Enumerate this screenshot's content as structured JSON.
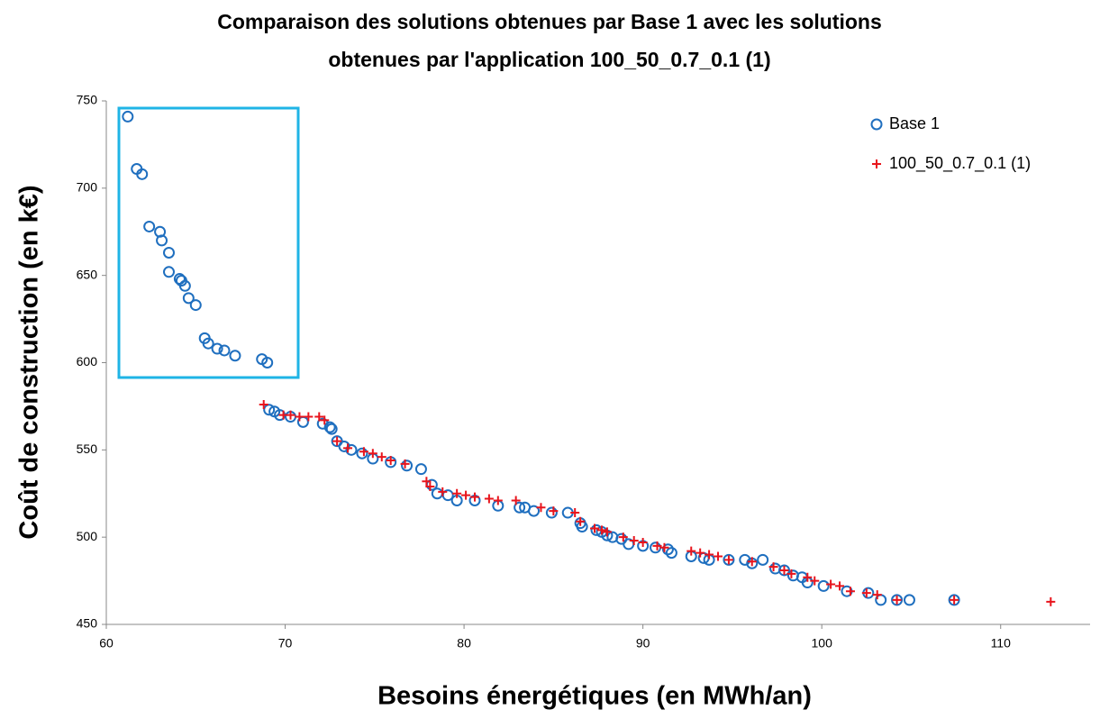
{
  "chart_data": {
    "type": "scatter",
    "title": [
      "Comparaison des solutions obtenues par Base 1 avec les solutions",
      "obtenues par l'application 100_50_0.7_0.1 (1)"
    ],
    "xlabel": "Besoins énergétiques (en MWh/an)",
    "ylabel": "Coût de construction (en k€)",
    "xlim": [
      60,
      115
    ],
    "xticks": [
      60,
      70,
      80,
      90,
      100,
      110
    ],
    "ylim": [
      450,
      750
    ],
    "yticks": [
      450,
      500,
      550,
      600,
      650,
      700,
      750
    ],
    "grid": false,
    "legend": "upper right",
    "series": [
      {
        "name": "Base 1",
        "color": "#1f6fbf",
        "marker": "circle",
        "x": [
          61.2,
          61.7,
          62.0,
          62.4,
          63.0,
          63.1,
          63.5,
          63.5,
          64.1,
          64.2,
          64.4,
          64.6,
          65.0,
          65.5,
          65.7,
          66.2,
          66.6,
          67.2,
          68.7,
          69.0,
          69.1,
          69.4,
          69.7,
          70.3,
          71.0,
          72.1,
          72.5,
          72.6,
          72.9,
          73.3,
          73.7,
          74.3,
          74.9,
          75.9,
          76.8,
          77.6,
          78.2,
          78.5,
          79.1,
          79.6,
          80.6,
          81.9,
          83.1,
          83.4,
          83.9,
          84.9,
          85.8,
          86.5,
          86.6,
          87.4,
          87.7,
          88.0,
          88.3,
          88.8,
          89.2,
          90.0,
          90.7,
          91.4,
          91.6,
          92.7,
          93.4,
          93.7,
          94.8,
          95.7,
          96.1,
          96.7,
          97.4,
          97.9,
          98.4,
          98.9,
          99.2,
          100.1,
          101.4,
          102.6,
          103.3,
          104.2,
          104.9,
          107.4
        ],
        "values": [
          741,
          711,
          708,
          678,
          675,
          670,
          663,
          652,
          648,
          647,
          644,
          637,
          633,
          614,
          611,
          608,
          607,
          604,
          602,
          600,
          573,
          572,
          570,
          569,
          566,
          565,
          563,
          562,
          555,
          552,
          550,
          548,
          545,
          543,
          541,
          539,
          530,
          525,
          524,
          521,
          521,
          518,
          517,
          517,
          515,
          514,
          514,
          508,
          506,
          504,
          503,
          501,
          500,
          499,
          496,
          495,
          494,
          493,
          491,
          489,
          488,
          487,
          487,
          487,
          485,
          487,
          482,
          481,
          478,
          477,
          474,
          472,
          469,
          468,
          464,
          464,
          464,
          464
        ]
      },
      {
        "name": "100_50_0.7_0.1 (1)",
        "color": "#e8141c",
        "marker": "plus",
        "x": [
          68.8,
          69.9,
          70.3,
          70.8,
          71.3,
          71.9,
          72.2,
          72.9,
          73.5,
          74.4,
          74.9,
          75.4,
          75.9,
          76.7,
          77.9,
          78.1,
          78.8,
          79.6,
          80.1,
          80.6,
          81.4,
          81.9,
          82.9,
          84.3,
          85.0,
          86.2,
          86.5,
          87.3,
          87.7,
          88.0,
          88.9,
          89.5,
          90.0,
          90.8,
          91.2,
          92.7,
          93.2,
          93.7,
          94.2,
          94.8,
          96.1,
          97.3,
          97.9,
          98.3,
          99.2,
          99.6,
          100.5,
          101.0,
          101.6,
          102.5,
          103.1,
          104.2,
          107.4,
          112.8
        ],
        "values": [
          576,
          570,
          570,
          569,
          569,
          569,
          567,
          555,
          551,
          549,
          548,
          546,
          544,
          542,
          532,
          529,
          526,
          525,
          524,
          523,
          522,
          521,
          521,
          517,
          515,
          514,
          509,
          505,
          504,
          503,
          500,
          498,
          497,
          495,
          494,
          492,
          491,
          490,
          489,
          487,
          486,
          483,
          481,
          479,
          477,
          475,
          473,
          472,
          469,
          468,
          467,
          464,
          464,
          463
        ]
      }
    ]
  }
}
